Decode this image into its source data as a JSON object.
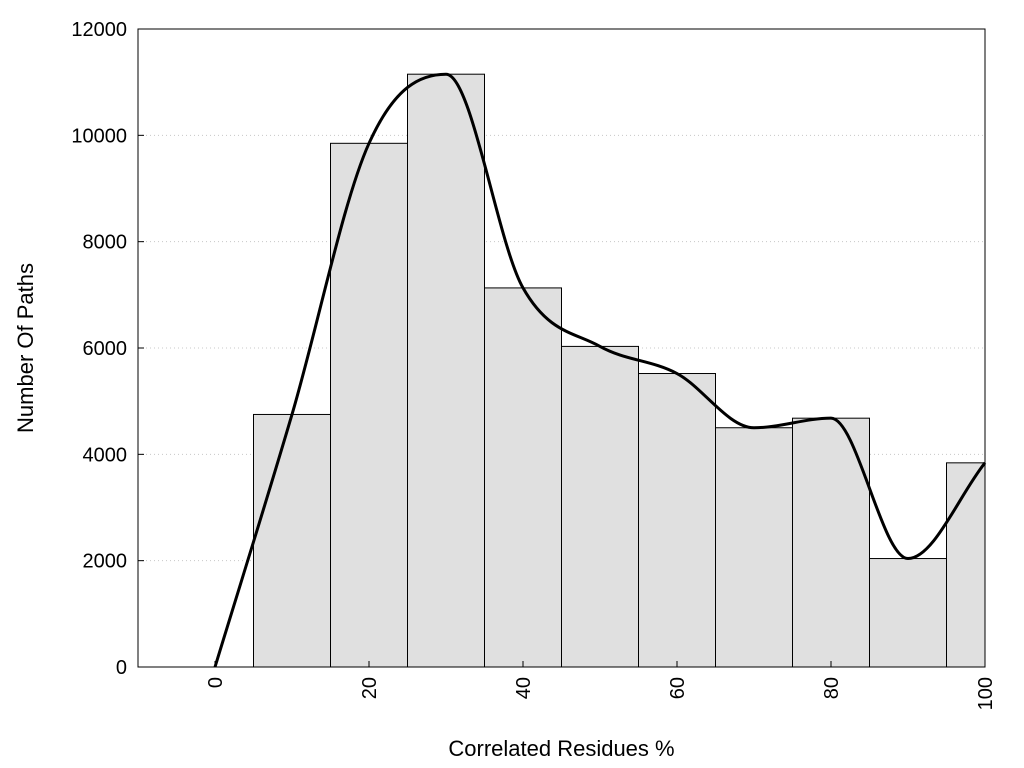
{
  "chart_data": {
    "type": "bar",
    "title": "",
    "xlabel": "Correlated Residues %",
    "ylabel": "Number Of Paths",
    "xlim": [
      -10,
      100
    ],
    "ylim": [
      0,
      12000
    ],
    "x_ticks": [
      0,
      20,
      40,
      60,
      80,
      100
    ],
    "y_ticks": [
      0,
      2000,
      4000,
      6000,
      8000,
      10000,
      12000
    ],
    "grid": "horizontal dotted",
    "bin_width": 10,
    "bars": [
      {
        "x": 10,
        "value": 4750
      },
      {
        "x": 20,
        "value": 9850
      },
      {
        "x": 30,
        "value": 11150
      },
      {
        "x": 40,
        "value": 7130
      },
      {
        "x": 50,
        "value": 6030
      },
      {
        "x": 60,
        "value": 5520
      },
      {
        "x": 70,
        "value": 4500
      },
      {
        "x": 80,
        "value": 4680
      },
      {
        "x": 90,
        "value": 2040
      },
      {
        "x": 100,
        "value": 3840
      }
    ],
    "curve": [
      {
        "x": 0,
        "y": 0
      },
      {
        "x": 10,
        "y": 4750
      },
      {
        "x": 20,
        "y": 9850
      },
      {
        "x": 30,
        "y": 11150
      },
      {
        "x": 40,
        "y": 7130
      },
      {
        "x": 50,
        "y": 6030
      },
      {
        "x": 60,
        "y": 5520
      },
      {
        "x": 70,
        "y": 4500
      },
      {
        "x": 80,
        "y": 4680
      },
      {
        "x": 90,
        "y": 2040
      },
      {
        "x": 100,
        "y": 3840
      }
    ],
    "colors": {
      "bar_fill": "#e0e0e0",
      "bar_stroke": "#000000",
      "curve": "#000000",
      "grid": "#c8c8c8"
    }
  }
}
